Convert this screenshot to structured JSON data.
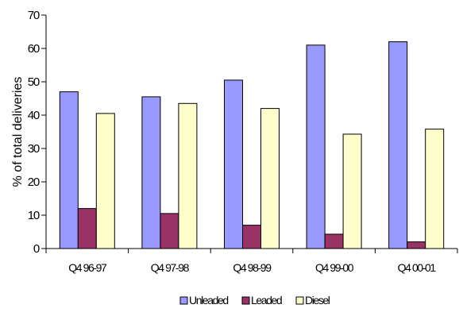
{
  "chart_data": {
    "type": "bar",
    "title": "",
    "xlabel": "",
    "ylabel": "% of total deliveries",
    "categories": [
      "Q4 96-97",
      "Q4 97-98",
      "Q4 98-99",
      "Q4 99-00",
      "Q4 00-01"
    ],
    "ylim": [
      0,
      70
    ],
    "yticks": [
      "0",
      "10",
      "20",
      "30",
      "40",
      "50",
      "60",
      "70"
    ],
    "grid": false,
    "legend_position": "bottom",
    "series": [
      {
        "name": "Unleaded",
        "color": "#9999ff",
        "values": [
          47,
          45.5,
          50.5,
          61,
          62
        ]
      },
      {
        "name": "Leaded",
        "color": "#993366",
        "values": [
          12,
          10.5,
          7,
          4.3,
          2
        ]
      },
      {
        "name": "Diesel",
        "color": "#ffffcc",
        "values": [
          40.5,
          43.5,
          42,
          34.3,
          35.8
        ]
      }
    ]
  }
}
